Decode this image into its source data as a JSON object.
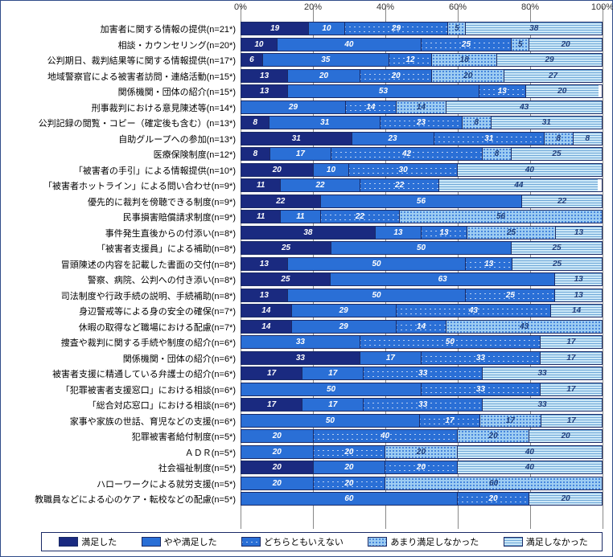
{
  "chart": {
    "type": "stacked-bar-horizontal",
    "xlim": [
      0,
      100
    ],
    "xtick_step": 20,
    "xtick_suffix": "%",
    "background_color": "#ffffff",
    "grid_color": "#888888",
    "bar_border_color": "#1a2a66",
    "label_fontsize": 11,
    "value_fontsize": 10,
    "value_font_style": "italic",
    "min_label_value": 5,
    "series": [
      {
        "key": "s0",
        "label": "満足した",
        "fill": "#1a2a80",
        "text": "#ffffff"
      },
      {
        "key": "s1",
        "label": "やや満足した",
        "fill": "#2a6fd6",
        "text": "#ffffff"
      },
      {
        "key": "s2",
        "label": "どちらともいえない",
        "fill": "crosshatch",
        "text": "#ffffff"
      },
      {
        "key": "s3",
        "label": "あまり満足しなかった",
        "fill": "dots",
        "text": "#1a3a7a"
      },
      {
        "key": "s4",
        "label": "満足しなかった",
        "fill": "hstripe",
        "text": "#1a3a7a"
      }
    ],
    "rows": [
      {
        "label": "加害者に関する情報の提供(n=21*)",
        "v": [
          19,
          10,
          29,
          5,
          38
        ]
      },
      {
        "label": "相談・カウンセリング(n=20*)",
        "v": [
          10,
          40,
          25,
          5,
          20
        ]
      },
      {
        "label": "公判期日、裁判結果等に関する情報提供(n=17*)",
        "v": [
          6,
          35,
          12,
          18,
          29
        ]
      },
      {
        "label": "地域警察官による被害者訪問・連絡活動(n=15*)",
        "v": [
          13,
          20,
          20,
          20,
          27
        ]
      },
      {
        "label": "関係機関・団体の紹介(n=15*)",
        "v": [
          13,
          53,
          13,
          0,
          20
        ]
      },
      {
        "label": "刑事裁判における意見陳述等(n=14*)",
        "v": [
          0,
          29,
          14,
          14,
          43
        ]
      },
      {
        "label": "公判記録の閲覧・コピー（確定後も含む）(n=13*)",
        "v": [
          8,
          31,
          23,
          8,
          31
        ]
      },
      {
        "label": "自助グループへの参加(n=13*)",
        "v": [
          31,
          23,
          31,
          8,
          8
        ]
      },
      {
        "label": "医療保険制度(n=12*)",
        "v": [
          8,
          17,
          42,
          8,
          25
        ]
      },
      {
        "label": "「被害者の手引」による情報提供(n=10*)",
        "v": [
          20,
          10,
          30,
          0,
          40
        ]
      },
      {
        "label": "「被害者ホットライン」による問い合わせ(n=9*)",
        "v": [
          11,
          22,
          22,
          0,
          44
        ]
      },
      {
        "label": "優先的に裁判を傍聴できる制度(n=9*)",
        "v": [
          22,
          56,
          0,
          0,
          22
        ]
      },
      {
        "label": "民事損害賠償請求制度(n=9*)",
        "v": [
          11,
          11,
          22,
          56,
          0
        ]
      },
      {
        "label": "事件発生直後からの付添い(n=8*)",
        "v": [
          38,
          13,
          13,
          25,
          13
        ]
      },
      {
        "label": "「被害者支援員」による補助(n=8*)",
        "v": [
          25,
          50,
          0,
          0,
          25
        ]
      },
      {
        "label": "冒頭陳述の内容を記載した書面の交付(n=8*)",
        "v": [
          13,
          50,
          13,
          0,
          25
        ]
      },
      {
        "label": "警察、病院、公判への付き添い(n=8*)",
        "v": [
          25,
          63,
          0,
          0,
          13
        ]
      },
      {
        "label": "司法制度や行政手続の説明、手続補助(n=8*)",
        "v": [
          13,
          50,
          25,
          0,
          13
        ]
      },
      {
        "label": "身辺警戒等による身の安全の確保(n=7*)",
        "v": [
          14,
          29,
          43,
          0,
          14
        ]
      },
      {
        "label": "休暇の取得など職場における配慮(n=7*)",
        "v": [
          14,
          29,
          14,
          43,
          0
        ]
      },
      {
        "label": "捜査や裁判に関する手続や制度の紹介(n=6*)",
        "v": [
          0,
          33,
          50,
          0,
          17
        ]
      },
      {
        "label": "関係機関・団体の紹介(n=6*)",
        "v": [
          33,
          17,
          33,
          0,
          17
        ]
      },
      {
        "label": "被害者支援に精通している弁護士の紹介(n=6*)",
        "v": [
          17,
          17,
          33,
          0,
          33
        ]
      },
      {
        "label": "「犯罪被害者支援窓口」における相談(n=6*)",
        "v": [
          0,
          50,
          33,
          0,
          17
        ]
      },
      {
        "label": "「総合対応窓口」における相談(n=6*)",
        "v": [
          17,
          17,
          33,
          0,
          33
        ]
      },
      {
        "label": "家事や家族の世話、育児などの支援(n=6*)",
        "v": [
          0,
          50,
          17,
          17,
          17
        ]
      },
      {
        "label": "犯罪被害者給付制度(n=5*)",
        "v": [
          0,
          20,
          40,
          20,
          20
        ]
      },
      {
        "label": "ＡＤＲ(n=5*)",
        "v": [
          0,
          20,
          20,
          20,
          40
        ]
      },
      {
        "label": "社会福祉制度(n=5*)",
        "v": [
          20,
          20,
          20,
          0,
          40
        ]
      },
      {
        "label": "ハローワークによる就労支援(n=5*)",
        "v": [
          0,
          20,
          20,
          60,
          0
        ]
      },
      {
        "label": "教職員などによる心のケア・転校などの配慮(n=5*)",
        "v": [
          0,
          60,
          20,
          0,
          20
        ]
      }
    ]
  }
}
